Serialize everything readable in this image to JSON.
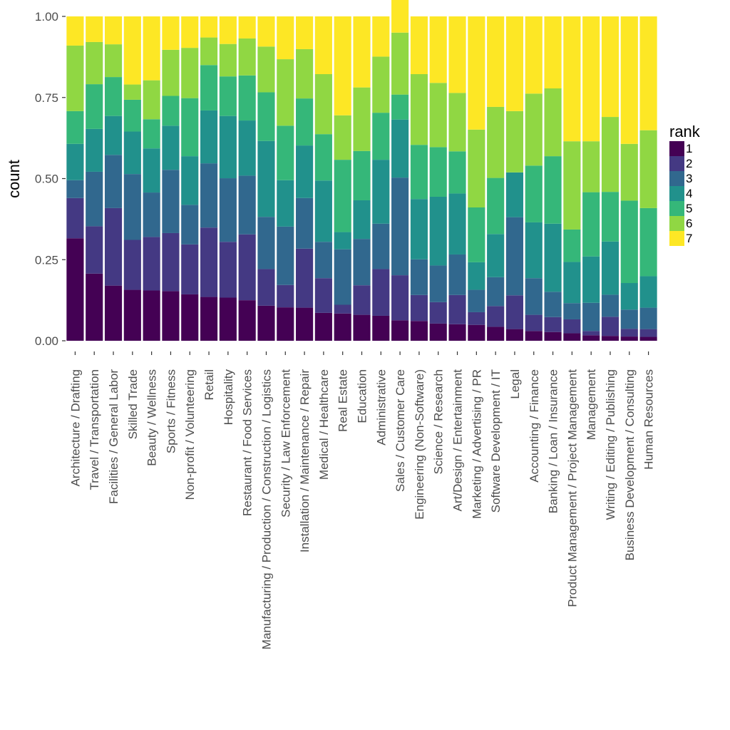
{
  "chart_data": {
    "type": "bar",
    "stacked": true,
    "normalized": true,
    "ylabel": "count",
    "xlabel": "",
    "ylim": [
      0,
      1
    ],
    "yticks": [
      "0.00",
      "0.25",
      "0.50",
      "0.75",
      "1.00"
    ],
    "grid": false,
    "legend": {
      "title": "rank",
      "placement": "right",
      "entries": [
        "1",
        "2",
        "3",
        "4",
        "5",
        "6",
        "7"
      ]
    },
    "colors": [
      "#440154",
      "#443983",
      "#31688e",
      "#21918c",
      "#35b779",
      "#90d743",
      "#fde725"
    ],
    "categories": [
      "Architecture / Drafting",
      "Travel / Transportation",
      "Facilities / General Labor",
      "Skilled Trade",
      "Beauty / Wellness",
      "Sports / Fitness",
      "Non-profit / Volunteering",
      "Retail",
      "Hospitality",
      "Restaurant / Food Services",
      "Manufacturing / Production / Construction / Logistics",
      "Security / Law Enforcement",
      "Installation / Maintenance / Repair",
      "Medical / Healthcare",
      "Real Estate",
      "Education",
      "Administrative",
      "Sales / Customer Care",
      "Engineering (Non-Software)",
      "Science / Research",
      "Art/Design / Entertainment",
      "Marketing / Advertising / PR",
      "Software Development / IT",
      "Legal",
      "Accounting / Finance",
      "Banking / Loan / Insurance",
      "Product Management / Project Management",
      "Management",
      "Writing / Editing / Publishing",
      "Business Development / Consulting",
      "Human Resources"
    ],
    "series": [
      {
        "name": "1",
        "values": [
          0.316,
          0.207,
          0.17,
          0.157,
          0.155,
          0.153,
          0.143,
          0.135,
          0.133,
          0.125,
          0.108,
          0.103,
          0.102,
          0.086,
          0.084,
          0.08,
          0.077,
          0.063,
          0.061,
          0.053,
          0.051,
          0.049,
          0.043,
          0.036,
          0.03,
          0.027,
          0.023,
          0.017,
          0.015,
          0.013,
          0.012
        ]
      },
      {
        "name": "2",
        "values": [
          0.124,
          0.146,
          0.239,
          0.154,
          0.165,
          0.179,
          0.154,
          0.214,
          0.172,
          0.203,
          0.113,
          0.069,
          0.182,
          0.107,
          0.027,
          0.091,
          0.144,
          0.139,
          0.08,
          0.066,
          0.09,
          0.039,
          0.064,
          0.104,
          0.05,
          0.046,
          0.043,
          0.013,
          0.059,
          0.024,
          0.024
        ]
      },
      {
        "name": "3",
        "values": [
          0.055,
          0.168,
          0.164,
          0.203,
          0.137,
          0.195,
          0.122,
          0.198,
          0.196,
          0.181,
          0.161,
          0.18,
          0.156,
          0.112,
          0.171,
          0.143,
          0.14,
          0.301,
          0.11,
          0.113,
          0.125,
          0.069,
          0.089,
          0.241,
          0.113,
          0.078,
          0.05,
          0.087,
          0.068,
          0.059,
          0.066
        ]
      },
      {
        "name": "4",
        "values": [
          0.112,
          0.132,
          0.12,
          0.131,
          0.136,
          0.136,
          0.15,
          0.163,
          0.192,
          0.17,
          0.234,
          0.143,
          0.162,
          0.189,
          0.053,
          0.119,
          0.197,
          0.179,
          0.186,
          0.212,
          0.188,
          0.085,
          0.133,
          0.138,
          0.172,
          0.21,
          0.127,
          0.143,
          0.164,
          0.082,
          0.097
        ]
      },
      {
        "name": "5",
        "values": [
          0.101,
          0.138,
          0.12,
          0.098,
          0.09,
          0.092,
          0.179,
          0.14,
          0.122,
          0.139,
          0.15,
          0.168,
          0.145,
          0.143,
          0.223,
          0.152,
          0.145,
          0.077,
          0.167,
          0.153,
          0.13,
          0.169,
          0.173,
          0.0,
          0.175,
          0.208,
          0.1,
          0.198,
          0.153,
          0.254,
          0.21
        ]
      },
      {
        "name": "6",
        "values": [
          0.202,
          0.13,
          0.101,
          0.047,
          0.12,
          0.142,
          0.155,
          0.085,
          0.1,
          0.114,
          0.141,
          0.205,
          0.152,
          0.185,
          0.137,
          0.196,
          0.173,
          0.191,
          0.218,
          0.198,
          0.18,
          0.24,
          0.219,
          0.189,
          0.222,
          0.209,
          0.272,
          0.157,
          0.231,
          0.175,
          0.24
        ]
      },
      {
        "name": "7",
        "values": [
          0.09,
          0.079,
          0.086,
          0.21,
          0.197,
          0.103,
          0.097,
          0.065,
          0.085,
          0.068,
          0.093,
          0.132,
          0.101,
          0.178,
          0.305,
          0.219,
          0.124,
          0.129,
          0.178,
          0.205,
          0.236,
          0.349,
          0.279,
          0.292,
          0.238,
          0.222,
          0.385,
          0.385,
          0.31,
          0.393,
          0.351
        ]
      }
    ]
  }
}
